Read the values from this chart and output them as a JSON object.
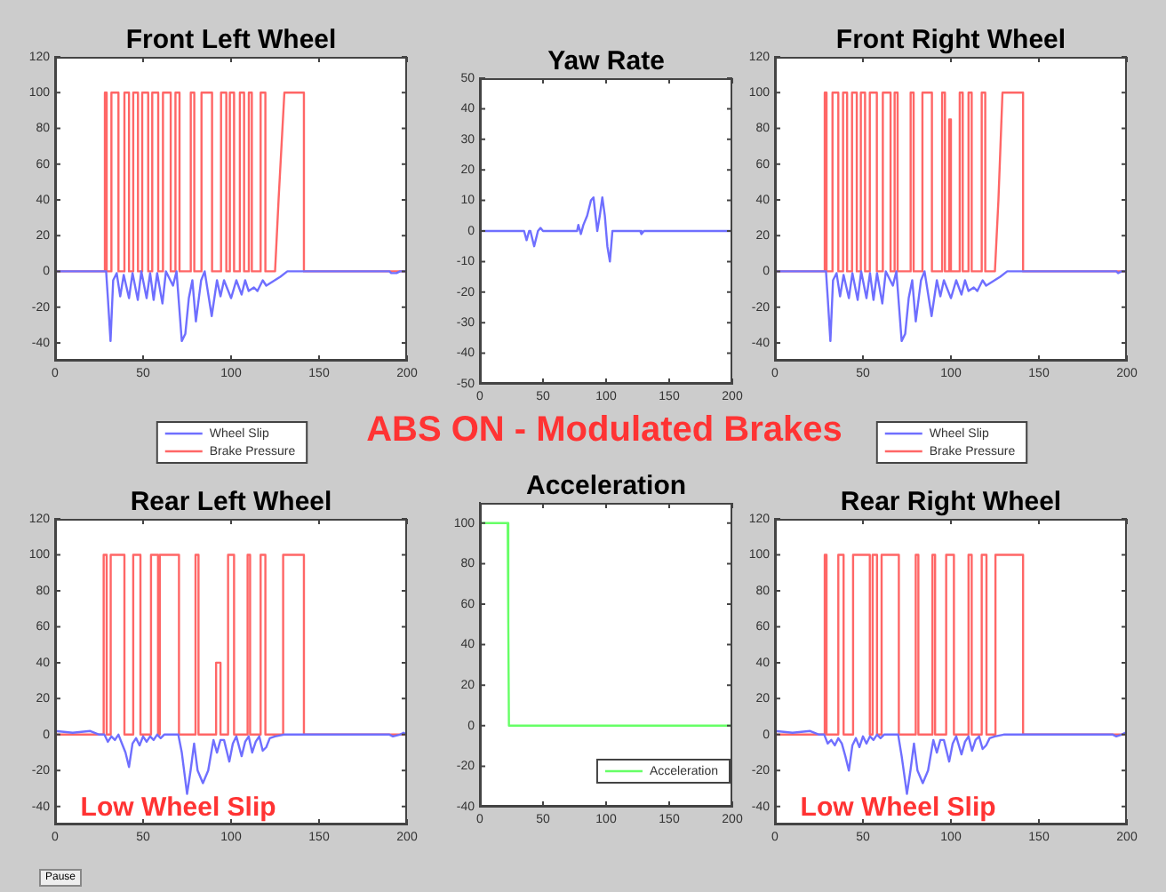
{
  "chart_data": [
    {
      "type": "line",
      "title": "Front Left Wheel",
      "xlim": [
        0,
        200
      ],
      "xticks": [
        0,
        50,
        100,
        150,
        200
      ],
      "ylim": [
        -50,
        120
      ],
      "yticks": [
        -40,
        -20,
        0,
        20,
        40,
        60,
        80,
        100,
        120
      ],
      "grid": false,
      "marker": "none",
      "legend": "bottom",
      "series": [
        {
          "name": "Wheel Slip",
          "color": "#6f6fff",
          "x": [
            0,
            29,
            30,
            31.5,
            33,
            35,
            37,
            39,
            42,
            44,
            47,
            49,
            52,
            54,
            56,
            58,
            61,
            63,
            67,
            69,
            72,
            74,
            76,
            78,
            80,
            83,
            85,
            89,
            92,
            94,
            96,
            100,
            103,
            106,
            108,
            110,
            113,
            115,
            118,
            120,
            128,
            132,
            190,
            191,
            194,
            196,
            200
          ],
          "values": [
            0,
            0,
            -15,
            -39,
            -5,
            -1,
            -14,
            -2,
            -15,
            -1,
            -16,
            0,
            -15,
            -1,
            -16,
            -1,
            -18,
            0,
            -8,
            0,
            -39,
            -35,
            -15,
            -5,
            -28,
            -5,
            0,
            -25,
            -5,
            -14,
            -5,
            -15,
            -5,
            -13,
            -5,
            -11,
            -9,
            -11,
            -5,
            -8,
            -3,
            0,
            0,
            -1,
            -1,
            0,
            0
          ]
        },
        {
          "name": "Brake Pressure",
          "color": "#ff6666",
          "x": [
            0,
            28.3,
            28.3,
            29.3,
            29.3,
            32,
            32,
            36,
            36,
            39.4,
            39.4,
            42,
            42,
            44.4,
            44.4,
            47.1,
            47.1,
            49.5,
            49.5,
            52.9,
            52.9,
            55.2,
            55.2,
            58.6,
            58.6,
            61.3,
            61.3,
            65.7,
            65.7,
            68.4,
            68.4,
            70.7,
            70.7,
            77.1,
            77.1,
            79.1,
            79.1,
            83.2,
            83.2,
            89.2,
            89.2,
            94.3,
            94.3,
            97.3,
            97.3,
            99.3,
            99.3,
            101.7,
            101.7,
            105,
            105,
            107.4,
            107.4,
            110.1,
            110.1,
            111.8,
            111.8,
            116.8,
            116.8,
            119.5,
            119.5,
            125,
            127,
            130.3,
            141.4,
            141.4,
            200
          ],
          "values": [
            0,
            0,
            100,
            100,
            0,
            0,
            100,
            100,
            0,
            0,
            100,
            100,
            0,
            0,
            100,
            100,
            0,
            0,
            100,
            100,
            0,
            0,
            100,
            100,
            0,
            0,
            100,
            100,
            0,
            0,
            100,
            100,
            0,
            0,
            100,
            100,
            0,
            0,
            100,
            100,
            0,
            0,
            100,
            100,
            0,
            0,
            100,
            100,
            0,
            0,
            100,
            100,
            0,
            0,
            100,
            100,
            0,
            0,
            100,
            100,
            0,
            0,
            40,
            100,
            100,
            0,
            0
          ]
        }
      ]
    },
    {
      "type": "line",
      "title": "Yaw Rate",
      "xlim": [
        0,
        200
      ],
      "xticks": [
        0,
        50,
        100,
        150,
        200
      ],
      "ylim": [
        -50,
        50
      ],
      "yticks": [
        -50,
        -40,
        -30,
        -20,
        -10,
        0,
        10,
        20,
        30,
        40,
        50
      ],
      "grid": false,
      "marker": "none",
      "series": [
        {
          "color": "#6f6fff",
          "x": [
            0,
            35,
            37,
            39,
            40,
            43,
            46,
            48,
            50,
            77,
            78,
            80,
            82,
            85,
            88,
            90,
            93,
            95,
            97,
            99,
            101,
            103,
            105,
            107,
            127,
            128,
            130,
            200
          ],
          "values": [
            0,
            0,
            -3,
            0,
            0,
            -5,
            0,
            1,
            0,
            0,
            2,
            -1,
            2,
            5,
            10,
            11,
            0,
            5,
            11,
            5,
            -5,
            -10,
            0,
            0,
            0,
            -1,
            0,
            0
          ]
        }
      ]
    },
    {
      "type": "line",
      "title": "Front Right Wheel",
      "xlim": [
        0,
        200
      ],
      "xticks": [
        0,
        50,
        100,
        150,
        200
      ],
      "ylim": [
        -50,
        120
      ],
      "yticks": [
        -40,
        -20,
        0,
        20,
        40,
        60,
        80,
        100,
        120
      ],
      "grid": false,
      "marker": "none",
      "legend": "bottom",
      "series": [
        {
          "name": "Wheel Slip",
          "color": "#6f6fff",
          "x": [
            0,
            29,
            30,
            31.5,
            33,
            35,
            37,
            39,
            42,
            44,
            47,
            49,
            52,
            54,
            56,
            58,
            61,
            63,
            67,
            69,
            72,
            74,
            76,
            78,
            80,
            83,
            85,
            89,
            92,
            94,
            96,
            100,
            103,
            106,
            108,
            110,
            113,
            115,
            118,
            120,
            128,
            132,
            194,
            195,
            197,
            200
          ],
          "values": [
            0,
            0,
            -15,
            -39,
            -5,
            -1,
            -14,
            -2,
            -15,
            -1,
            -16,
            0,
            -15,
            -1,
            -16,
            -1,
            -18,
            0,
            -8,
            0,
            -39,
            -35,
            -15,
            -5,
            -28,
            -5,
            0,
            -25,
            -5,
            -14,
            -5,
            -15,
            -5,
            -13,
            -5,
            -11,
            -9,
            -11,
            -5,
            -8,
            -3,
            0,
            0,
            -1,
            0,
            0
          ]
        },
        {
          "name": "Brake Pressure",
          "color": "#ff6666",
          "x": [
            0,
            28.3,
            28.3,
            29.3,
            29.3,
            32.7,
            32.7,
            36,
            36,
            38.7,
            38.7,
            41,
            41,
            43.8,
            43.8,
            46.5,
            46.5,
            48.8,
            48.8,
            51.2,
            51.2,
            53.9,
            53.9,
            57.9,
            57.9,
            61.3,
            61.3,
            65.7,
            65.7,
            68,
            68,
            69.7,
            69.7,
            77.1,
            77.1,
            78.8,
            78.8,
            83.8,
            83.8,
            89.2,
            89.2,
            95,
            95,
            96.6,
            96.6,
            99,
            99,
            100,
            100,
            105,
            105,
            106.7,
            106.7,
            110,
            110,
            111.8,
            111.8,
            117.5,
            117.5,
            119.5,
            119.5,
            125,
            127,
            129.3,
            141,
            141,
            200
          ],
          "values": [
            0,
            0,
            100,
            100,
            0,
            0,
            100,
            100,
            0,
            0,
            100,
            100,
            0,
            0,
            100,
            100,
            0,
            0,
            100,
            100,
            0,
            0,
            100,
            100,
            0,
            0,
            100,
            100,
            0,
            0,
            100,
            100,
            0,
            0,
            100,
            100,
            0,
            0,
            100,
            100,
            0,
            0,
            100,
            100,
            0,
            0,
            85,
            85,
            0,
            0,
            100,
            100,
            0,
            0,
            100,
            100,
            0,
            0,
            100,
            100,
            0,
            0,
            40,
            100,
            100,
            0,
            0
          ]
        }
      ]
    },
    {
      "type": "other",
      "title": "ABS ON - Modulated Brakes",
      "annotations": [
        "Pause"
      ]
    },
    {
      "type": "line",
      "title": "Rear Left Wheel",
      "xlim": [
        0,
        200
      ],
      "xticks": [
        0,
        50,
        100,
        150,
        200
      ],
      "ylim": [
        -50,
        120
      ],
      "yticks": [
        -40,
        -20,
        0,
        20,
        40,
        60,
        80,
        100,
        120
      ],
      "grid": false,
      "marker": "none",
      "annotations": [
        "Low Wheel Slip"
      ],
      "series": [
        {
          "color": "#6f6fff",
          "x": [
            0,
            10,
            20,
            25,
            28,
            30,
            32,
            34,
            36,
            38,
            40,
            42,
            44,
            46,
            48,
            50,
            52,
            54,
            56,
            58,
            60,
            62,
            70,
            72,
            75,
            77,
            79,
            81,
            84,
            87,
            90,
            92,
            94,
            96,
            99,
            101,
            103,
            106,
            108,
            110,
            112,
            114,
            116,
            118,
            120,
            122,
            125,
            130,
            190,
            192,
            196,
            198,
            200
          ],
          "values": [
            2,
            1,
            2,
            0,
            0,
            -4,
            -1,
            -3,
            0,
            -5,
            -10,
            -18,
            -5,
            -2,
            -6,
            -1,
            -4,
            -1,
            -3,
            0,
            -2,
            0,
            0,
            -10,
            -33,
            -20,
            -5,
            -20,
            -27,
            -20,
            -3,
            -10,
            -3,
            -3,
            -15,
            -5,
            -1,
            -12,
            -4,
            -1,
            -10,
            -4,
            -1,
            -9,
            -7,
            -2,
            -1,
            0,
            0,
            -1,
            0,
            1,
            0
          ]
        },
        {
          "color": "#ff6666",
          "x": [
            0,
            27.6,
            27.6,
            29.3,
            29.3,
            31.6,
            31.6,
            39.4,
            39.4,
            44.4,
            44.4,
            48.5,
            48.5,
            54.5,
            54.5,
            58.5,
            58.5,
            59.5,
            59.5,
            70.4,
            70.4,
            79.8,
            79.8,
            81.5,
            81.5,
            91.5,
            91.5,
            94,
            94,
            98.3,
            98.3,
            101.7,
            101.7,
            109.4,
            109.4,
            110.8,
            110.8,
            116.8,
            116.8,
            119.5,
            119.5,
            129.6,
            129.6,
            141.4,
            141.4,
            200
          ],
          "values": [
            0,
            0,
            100,
            100,
            0,
            0,
            100,
            100,
            0,
            0,
            100,
            100,
            0,
            0,
            100,
            100,
            0,
            0,
            100,
            100,
            0,
            0,
            100,
            100,
            0,
            0,
            40,
            40,
            0,
            0,
            100,
            100,
            0,
            0,
            100,
            100,
            0,
            0,
            100,
            100,
            0,
            0,
            100,
            100,
            0,
            0
          ]
        }
      ]
    },
    {
      "type": "line",
      "title": "Acceleration",
      "xlim": [
        0,
        200
      ],
      "xticks": [
        0,
        50,
        100,
        150,
        200
      ],
      "ylim": [
        -40,
        110
      ],
      "yticks": [
        -40,
        -20,
        0,
        20,
        40,
        60,
        80,
        100
      ],
      "grid": false,
      "marker": "none",
      "legend": "bottom right",
      "series": [
        {
          "name": "Acceleration",
          "color": "#66ff66",
          "x": [
            0,
            22,
            22.5,
            23,
            200
          ],
          "values": [
            100,
            100,
            50,
            0,
            0
          ]
        }
      ]
    },
    {
      "type": "line",
      "title": "Rear Right Wheel",
      "xlim": [
        0,
        200
      ],
      "xticks": [
        0,
        50,
        100,
        150,
        200
      ],
      "ylim": [
        -50,
        120
      ],
      "yticks": [
        -40,
        -20,
        0,
        20,
        40,
        60,
        80,
        100,
        120
      ],
      "grid": false,
      "marker": "none",
      "annotations": [
        "Low Wheel Slip"
      ],
      "series": [
        {
          "color": "#6f6fff",
          "x": [
            0,
            10,
            20,
            25,
            28,
            30,
            32,
            34,
            36,
            38,
            40,
            42,
            44,
            46,
            48,
            50,
            52,
            54,
            56,
            58,
            60,
            62,
            70,
            72,
            75,
            77,
            79,
            81,
            84,
            87,
            90,
            92,
            94,
            96,
            99,
            101,
            103,
            106,
            108,
            110,
            112,
            114,
            116,
            118,
            120,
            122,
            125,
            130,
            192,
            194,
            197,
            199,
            200
          ],
          "values": [
            2,
            1,
            2,
            0,
            0,
            -5,
            -3,
            -6,
            -2,
            -5,
            -12,
            -20,
            -6,
            -2,
            -7,
            -1,
            -5,
            -1,
            -3,
            0,
            -2,
            0,
            0,
            -12,
            -33,
            -20,
            -5,
            -20,
            -27,
            -20,
            -3,
            -10,
            -3,
            -3,
            -15,
            -5,
            -1,
            -11,
            -4,
            -1,
            -9,
            -3,
            -1,
            -8,
            -6,
            -2,
            -1,
            0,
            0,
            -1,
            0,
            1,
            1
          ]
        },
        {
          "color": "#ff6666",
          "x": [
            0,
            28.3,
            28.3,
            29.3,
            29.3,
            36,
            36,
            39,
            39,
            44.4,
            44.4,
            53.9,
            53.9,
            55.5,
            55.5,
            58,
            58,
            60.6,
            60.6,
            70.4,
            70.4,
            80,
            80,
            81.5,
            81.5,
            89.5,
            89.5,
            91,
            91,
            97.3,
            97.3,
            101.7,
            101.7,
            110,
            110,
            111.8,
            111.8,
            117.5,
            117.5,
            120.2,
            120.2,
            125.3,
            125.3,
            141,
            141,
            200
          ],
          "values": [
            0,
            0,
            100,
            100,
            0,
            0,
            100,
            100,
            0,
            0,
            100,
            100,
            0,
            0,
            100,
            100,
            0,
            0,
            100,
            100,
            0,
            0,
            100,
            100,
            0,
            0,
            100,
            100,
            0,
            0,
            100,
            100,
            0,
            0,
            100,
            100,
            0,
            0,
            100,
            100,
            0,
            0,
            100,
            100,
            0,
            0
          ]
        }
      ]
    }
  ]
}
